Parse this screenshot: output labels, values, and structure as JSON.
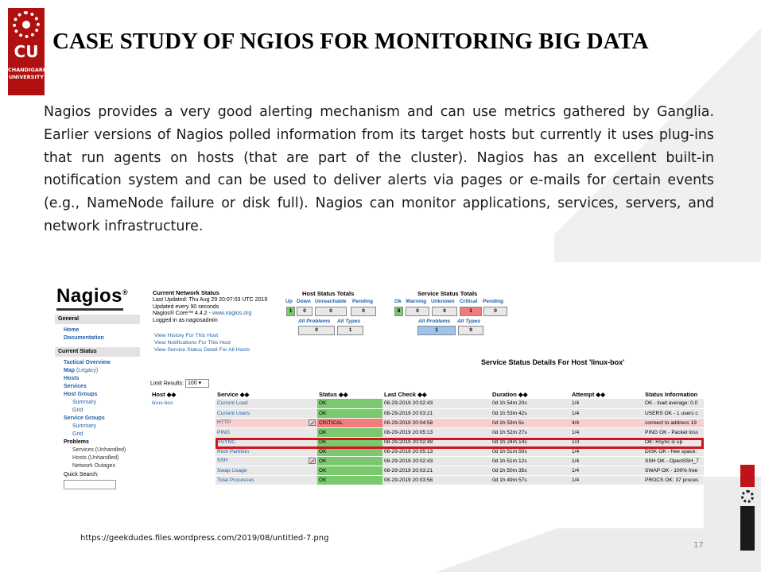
{
  "slide": {
    "title": "CASE STUDY OF NGIOS FOR MONITORING BIG DATA",
    "body": "Nagios provides a very good alerting mechanism and can use metrics gathered by Ganglia. Earlier versions of Nagios polled information from its target hosts but currently it uses plug-ins that run agents on hosts (that are part of the cluster). Nagios has an excellent built-in notification system and can be used to deliver alerts via pages or e-mails for certain events (e.g., NameNode failure or disk full). Nagios can monitor applications, services, servers, and network infrastructure.",
    "source": "https://geekdudes.files.wordpress.com/2019/08/untitled-7.png",
    "page_number": "17",
    "logo": {
      "initials": "CU",
      "name_line1": "CHANDIGARH",
      "name_line2": "UNIVERSITY"
    }
  },
  "nagios": {
    "logo": "Nagios",
    "sidebar": {
      "general": "General",
      "home": "Home",
      "documentation": "Documentation",
      "current_status": "Current Status",
      "tactical": "Tactical Overview",
      "map": "Map",
      "map_legacy": "(Legacy)",
      "hosts": "Hosts",
      "services": "Services",
      "host_groups": "Host Groups",
      "summary": "Summary",
      "grid": "Grid",
      "service_groups": "Service Groups",
      "summary2": "Summary",
      "grid2": "Grid",
      "problems": "Problems",
      "services_unhandled": "Services (Unhandled)",
      "hosts_unhandled": "Hosts (Unhandled)",
      "network_outages": "Network Outages",
      "quick_search": "Quick Search:"
    },
    "status": {
      "title": "Current Network Status",
      "last_updated": "Last Updated: Thu Aug 29 20:07:03 UTC 2019",
      "updated_every": "Updated every 90 seconds",
      "version": "Nagios® Core™ 4.4.2 -",
      "version_link": "www.nagios.org",
      "logged_in": "Logged in as nagiosadmin",
      "link1": "View History For This Host",
      "link2": "View Notifications For This Host",
      "link3": "View Service Status Detail For All Hosts"
    },
    "host_totals": {
      "title": "Host Status Totals",
      "headers": [
        "Up",
        "Down",
        "Unreachable",
        "Pending"
      ],
      "values": [
        "1",
        "0",
        "0",
        "0"
      ],
      "all_problems": "All Problems",
      "all_types": "All Types",
      "all_values": [
        "0",
        "1"
      ]
    },
    "service_totals": {
      "title": "Service Status Totals",
      "headers": [
        "Ok",
        "Warning",
        "Unknown",
        "Critical",
        "Pending"
      ],
      "values": [
        "8",
        "0",
        "0",
        "1",
        "0"
      ],
      "all_problems": "All Problems",
      "all_types": "All Types",
      "all_values": [
        "1",
        "9"
      ]
    },
    "detail_title": "Service Status Details For Host 'linux-box'",
    "limit_label": "Limit Results:",
    "limit_value": "100",
    "columns": [
      "Host",
      "Service",
      "Status",
      "Last Check",
      "Duration",
      "Attempt",
      "Status Information"
    ],
    "rows": [
      {
        "host": "linux-box",
        "service": "Current Load",
        "status": "OK",
        "last": "08-29-2019 20:02:43",
        "dur": "0d 1h 54m 20s",
        "att": "1/4",
        "info": "OK - load average: 0.0"
      },
      {
        "host": "",
        "service": "Current Users",
        "status": "OK",
        "last": "08-29-2019 20:03:21",
        "dur": "0d 1h 53m 42s",
        "att": "1/4",
        "info": "USERS OK - 1 users c"
      },
      {
        "host": "",
        "service": "HTTP",
        "status": "CRITICAL",
        "last": "08-29-2019 20:04:58",
        "dur": "0d 1h 53m 5s",
        "att": "4/4",
        "info": "connect to address 19"
      },
      {
        "host": "",
        "service": "PING",
        "status": "OK",
        "last": "08-29-2019 20:05:13",
        "dur": "0d 1h 52m 27s",
        "att": "1/4",
        "info": "PING OK - Packet loss"
      },
      {
        "host": "",
        "service": "RSYNC",
        "status": "OK",
        "last": "08-29-2019 20:02:49",
        "dur": "0d 1h 24m 14s",
        "att": "1/3",
        "info": "OK: Rsync is up"
      },
      {
        "host": "",
        "service": "Root Partition",
        "status": "OK",
        "last": "08-29-2019 20:05:13",
        "dur": "0d 1h 51m 50s",
        "att": "1/4",
        "info": "DISK OK - free space:"
      },
      {
        "host": "",
        "service": "SSH",
        "status": "OK",
        "last": "08-29-2019 20:02:43",
        "dur": "0d 1h 51m 12s",
        "att": "1/4",
        "info": "SSH OK - OpenSSH_7"
      },
      {
        "host": "",
        "service": "Swap Usage",
        "status": "OK",
        "last": "08-29-2019 20:03:21",
        "dur": "0d 1h 50m 35s",
        "att": "1/4",
        "info": "SWAP OK - 100% free"
      },
      {
        "host": "",
        "service": "Total Processes",
        "status": "OK",
        "last": "08-29-2019 20:03:58",
        "dur": "0d 1h 49m 57s",
        "att": "1/4",
        "info": "PROCS OK: 37 proces"
      }
    ]
  }
}
